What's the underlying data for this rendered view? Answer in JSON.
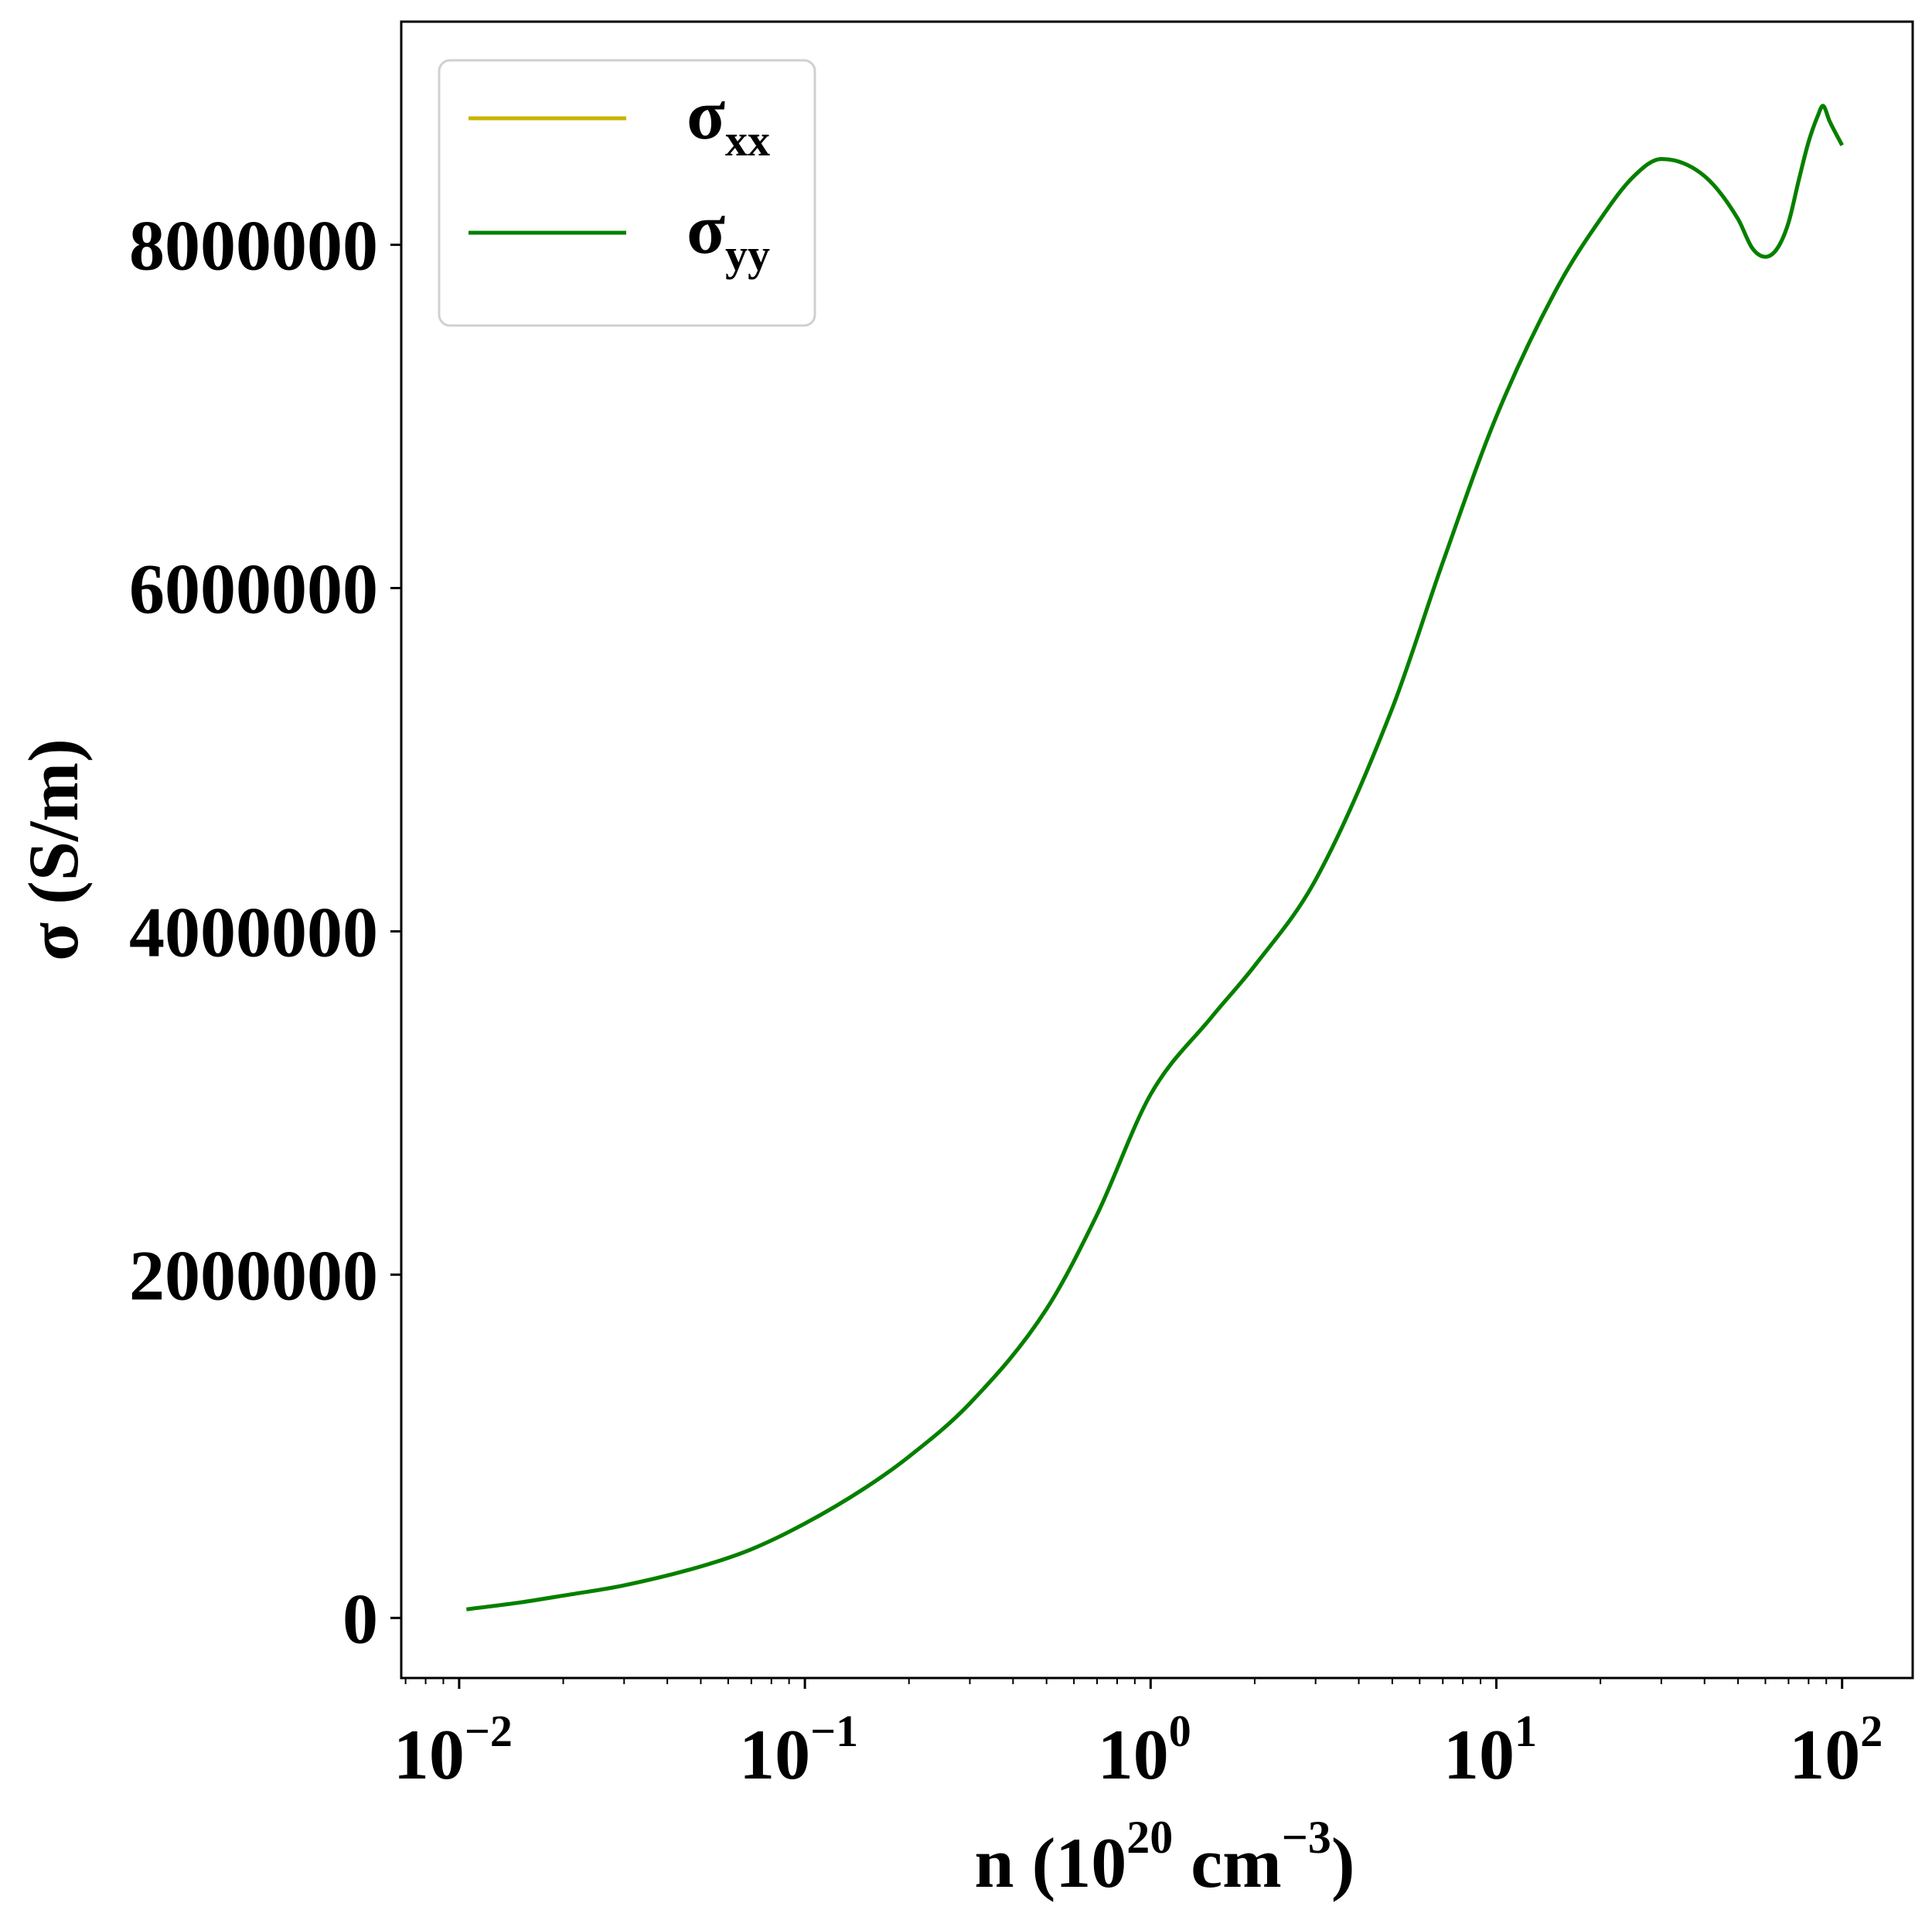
{
  "chart_data": {
    "type": "line",
    "xscale": "log",
    "xlim": [
      0.0068,
      160
    ],
    "ylim": [
      -350000,
      9300000
    ],
    "xlabel": {
      "base": "n (10",
      "exp1": "20",
      "mid": " cm",
      "exp2": "−3",
      "tail": ")"
    },
    "ylabel": "σ (S/m)",
    "yticks": [
      {
        "value": 0,
        "label": "0"
      },
      {
        "value": 2000000,
        "label": "2000000"
      },
      {
        "value": 4000000,
        "label": "4000000"
      },
      {
        "value": 6000000,
        "label": "6000000"
      },
      {
        "value": 8000000,
        "label": "8000000"
      }
    ],
    "xticks": [
      {
        "value": 0.01,
        "base": "10",
        "exp": "−2"
      },
      {
        "value": 0.1,
        "base": "10",
        "exp": "−1"
      },
      {
        "value": 1,
        "base": "10",
        "exp": "0"
      },
      {
        "value": 10,
        "base": "10",
        "exp": "1"
      },
      {
        "value": 100,
        "base": "10",
        "exp": "2"
      }
    ],
    "grid": false,
    "legend_position": "top-left",
    "series": [
      {
        "name": "σxx",
        "name_base": "σ",
        "name_sub": "xx",
        "color": "#c8b400",
        "x": [
          0.0105,
          0.015,
          0.02,
          0.03,
          0.05,
          0.07,
          0.1,
          0.15,
          0.2,
          0.3,
          0.5,
          0.7,
          1.0,
          1.5,
          2.0,
          3.0,
          5.0,
          7.0,
          10.0,
          15.0,
          20.0,
          25.0,
          30.0,
          40.0,
          50.0,
          55.0,
          60.0,
          65.0,
          70.0,
          75.0,
          80.0,
          85.0,
          88.0,
          92.0,
          100.0
        ],
        "y": [
          50000,
          90000,
          130000,
          190000,
          300000,
          400000,
          550000,
          760000,
          940000,
          1250000,
          1800000,
          2350000,
          3050000,
          3500000,
          3800000,
          4300000,
          5300000,
          6150000,
          7000000,
          7750000,
          8150000,
          8400000,
          8500000,
          8400000,
          8150000,
          7980000,
          7930000,
          7980000,
          8130000,
          8380000,
          8600000,
          8750000,
          8810000,
          8720000,
          8580000
        ]
      },
      {
        "name": "σyy",
        "name_base": "σ",
        "name_sub": "yy",
        "color": "#008000",
        "x": [
          0.0105,
          0.015,
          0.02,
          0.03,
          0.05,
          0.07,
          0.1,
          0.15,
          0.2,
          0.3,
          0.5,
          0.7,
          1.0,
          1.5,
          2.0,
          3.0,
          5.0,
          7.0,
          10.0,
          15.0,
          20.0,
          25.0,
          30.0,
          40.0,
          50.0,
          55.0,
          60.0,
          65.0,
          70.0,
          75.0,
          80.0,
          85.0,
          88.0,
          92.0,
          100.0
        ],
        "y": [
          50000,
          90000,
          130000,
          190000,
          300000,
          400000,
          550000,
          760000,
          940000,
          1250000,
          1800000,
          2350000,
          3050000,
          3500000,
          3800000,
          4300000,
          5300000,
          6150000,
          7000000,
          7750000,
          8150000,
          8400000,
          8500000,
          8400000,
          8150000,
          7980000,
          7930000,
          7980000,
          8130000,
          8380000,
          8600000,
          8750000,
          8810000,
          8720000,
          8580000
        ]
      }
    ]
  }
}
